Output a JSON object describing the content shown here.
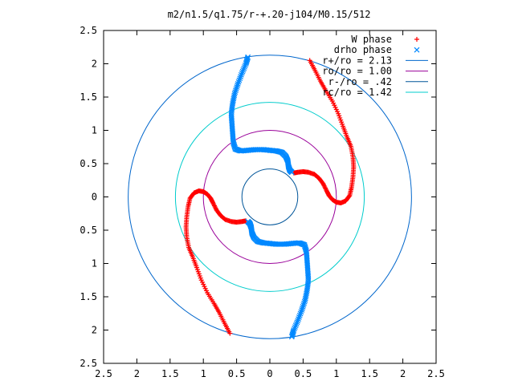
{
  "chart_data": {
    "type": "scatter",
    "title": "m2/n1.5/q1.75/r-+.20-j104/M0.15/512",
    "xlabel": "",
    "ylabel": "",
    "xlim": [
      -2.5,
      2.5
    ],
    "ylim": [
      -2.5,
      2.5
    ],
    "x_tick_values": [
      -2.5,
      -2,
      -1.5,
      -1,
      -0.5,
      0,
      0.5,
      1,
      1.5,
      2,
      2.5
    ],
    "x_tick_labels": [
      "2.5",
      "2",
      "1.5",
      "1",
      "0.5",
      "0",
      "0.5",
      "1",
      "1.5",
      "2",
      "2.5"
    ],
    "y_tick_values": [
      2.5,
      2,
      1.5,
      1,
      0.5,
      0,
      -0.5,
      -1,
      -1.5,
      -2,
      -2.5
    ],
    "y_tick_labels": [
      "2.5",
      "2",
      "1.5",
      "1",
      "0.5",
      "0",
      "0.5",
      "1",
      "1.5",
      "2",
      "2.5"
    ],
    "grid": false,
    "legend_position": "top-right",
    "series": [
      {
        "name": "W phase",
        "marker": "+",
        "color": "#ff0000",
        "points": [
          [
            -0.6,
            -2.05
          ],
          [
            -0.68,
            -1.9
          ],
          [
            -0.76,
            -1.74
          ],
          [
            -0.84,
            -1.6
          ],
          [
            -0.94,
            -1.44
          ],
          [
            -1.03,
            -1.25
          ],
          [
            -1.1,
            -1.06
          ],
          [
            -1.16,
            -0.9
          ],
          [
            -1.22,
            -0.76
          ],
          [
            -1.25,
            -0.6
          ],
          [
            -1.26,
            -0.45
          ],
          [
            -1.25,
            -0.3
          ],
          [
            -1.23,
            -0.15
          ],
          [
            -1.2,
            -0.02
          ],
          [
            -1.14,
            0.06
          ],
          [
            -1.07,
            0.09
          ],
          [
            -1.0,
            0.08
          ],
          [
            -0.94,
            0.04
          ],
          [
            -0.89,
            -0.02
          ],
          [
            -0.85,
            -0.1
          ],
          [
            -0.8,
            -0.2
          ],
          [
            -0.74,
            -0.28
          ],
          [
            -0.67,
            -0.34
          ],
          [
            -0.58,
            -0.37
          ],
          [
            -0.5,
            -0.38
          ],
          [
            -0.42,
            -0.37
          ],
          [
            -0.36,
            -0.36
          ],
          [
            0.6,
            2.05
          ],
          [
            0.68,
            1.9
          ],
          [
            0.76,
            1.74
          ],
          [
            0.84,
            1.6
          ],
          [
            0.94,
            1.44
          ],
          [
            1.03,
            1.25
          ],
          [
            1.1,
            1.06
          ],
          [
            1.16,
            0.9
          ],
          [
            1.22,
            0.76
          ],
          [
            1.25,
            0.6
          ],
          [
            1.26,
            0.45
          ],
          [
            1.25,
            0.3
          ],
          [
            1.23,
            0.15
          ],
          [
            1.2,
            0.02
          ],
          [
            1.14,
            -0.06
          ],
          [
            1.07,
            -0.09
          ],
          [
            1.0,
            -0.08
          ],
          [
            0.94,
            -0.04
          ],
          [
            0.89,
            0.02
          ],
          [
            0.85,
            0.1
          ],
          [
            0.8,
            0.2
          ],
          [
            0.74,
            0.28
          ],
          [
            0.67,
            0.34
          ],
          [
            0.58,
            0.37
          ],
          [
            0.5,
            0.38
          ],
          [
            0.42,
            0.37
          ],
          [
            0.36,
            0.36
          ]
        ]
      },
      {
        "name": "drho phase",
        "marker": "x",
        "color": "#0088ff",
        "points": [
          [
            -0.33,
            2.1
          ],
          [
            -0.36,
            2.0
          ],
          [
            -0.42,
            1.86
          ],
          [
            -0.48,
            1.7
          ],
          [
            -0.53,
            1.55
          ],
          [
            -0.56,
            1.4
          ],
          [
            -0.58,
            1.25
          ],
          [
            -0.57,
            1.1
          ],
          [
            -0.56,
            0.96
          ],
          [
            -0.55,
            0.82
          ],
          [
            -0.52,
            0.72
          ],
          [
            -0.44,
            0.69
          ],
          [
            -0.33,
            0.7
          ],
          [
            -0.22,
            0.71
          ],
          [
            -0.1,
            0.71
          ],
          [
            0.0,
            0.7
          ],
          [
            0.1,
            0.69
          ],
          [
            0.18,
            0.67
          ],
          [
            0.24,
            0.61
          ],
          [
            0.27,
            0.54
          ],
          [
            0.28,
            0.46
          ],
          [
            0.3,
            0.4
          ],
          [
            0.33,
            0.37
          ],
          [
            0.33,
            -2.1
          ],
          [
            0.36,
            -2.0
          ],
          [
            0.42,
            -1.86
          ],
          [
            0.48,
            -1.7
          ],
          [
            0.53,
            -1.55
          ],
          [
            0.56,
            -1.4
          ],
          [
            0.58,
            -1.25
          ],
          [
            0.57,
            -1.1
          ],
          [
            0.56,
            -0.96
          ],
          [
            0.55,
            -0.82
          ],
          [
            0.52,
            -0.72
          ],
          [
            0.44,
            -0.69
          ],
          [
            0.33,
            -0.7
          ],
          [
            0.22,
            -0.71
          ],
          [
            0.1,
            -0.71
          ],
          [
            0.0,
            -0.7
          ],
          [
            -0.1,
            -0.69
          ],
          [
            -0.18,
            -0.67
          ],
          [
            -0.24,
            -0.61
          ],
          [
            -0.27,
            -0.54
          ],
          [
            -0.28,
            -0.46
          ],
          [
            -0.3,
            -0.4
          ],
          [
            -0.33,
            -0.37
          ]
        ]
      },
      {
        "name": "r+/ro = 2.13",
        "type": "circle",
        "radius": 2.13,
        "color": "#0066cc"
      },
      {
        "name": "ro/ro = 1.00",
        "type": "circle",
        "radius": 1.0,
        "color": "#990099"
      },
      {
        "name": "r-/ro = .42",
        "type": "circle",
        "radius": 0.42,
        "color": "#005599"
      },
      {
        "name": "rc/ro = 1.42",
        "type": "circle",
        "radius": 1.42,
        "color": "#00cccc"
      }
    ]
  }
}
